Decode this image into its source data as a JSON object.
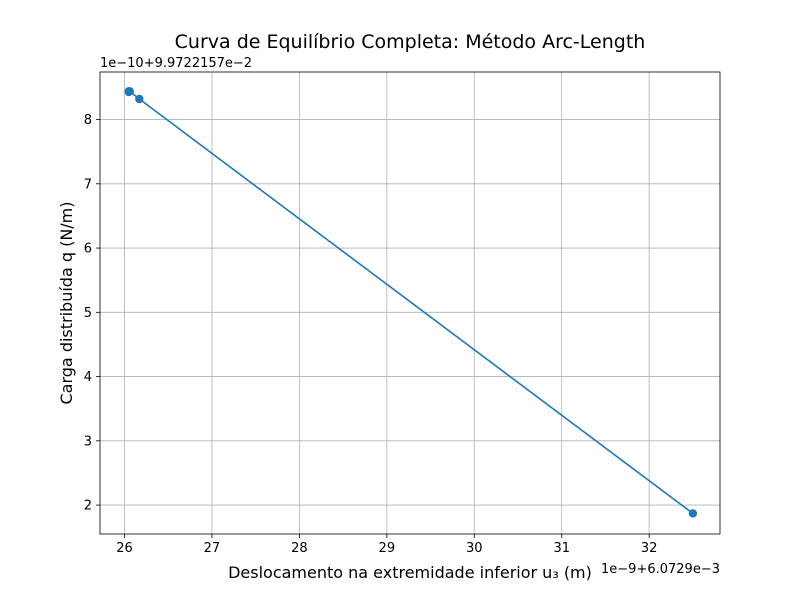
{
  "chart_data": {
    "type": "line",
    "title": "Curva de Equilíbrio Completa: Método Arc-Length",
    "xlabel": "Deslocamento na extremidade inferior u₃ (m)",
    "ylabel": "Carga distribuída q (N/m)",
    "x_offset_label": "1e−9+6.0729e−3",
    "y_offset_label": "1e−10+9.9722157e−2",
    "xlim": [
      25.72,
      32.81
    ],
    "ylim": [
      1.55,
      8.74
    ],
    "x_ticks": [
      26,
      27,
      28,
      29,
      30,
      31,
      32
    ],
    "y_ticks": [
      2,
      3,
      4,
      5,
      6,
      7,
      8
    ],
    "x_tick_labels": [
      "26",
      "27",
      "28",
      "29",
      "30",
      "31",
      "32"
    ],
    "y_tick_labels": [
      "2",
      "3",
      "4",
      "5",
      "6",
      "7",
      "8"
    ],
    "grid": true,
    "series": [
      {
        "color": "#1f77b4",
        "marker": "circle",
        "x": [
          26.05,
          26.05,
          26.06,
          26.17,
          32.5
        ],
        "y": [
          8.43,
          8.44,
          8.44,
          8.32,
          1.87
        ]
      }
    ]
  }
}
